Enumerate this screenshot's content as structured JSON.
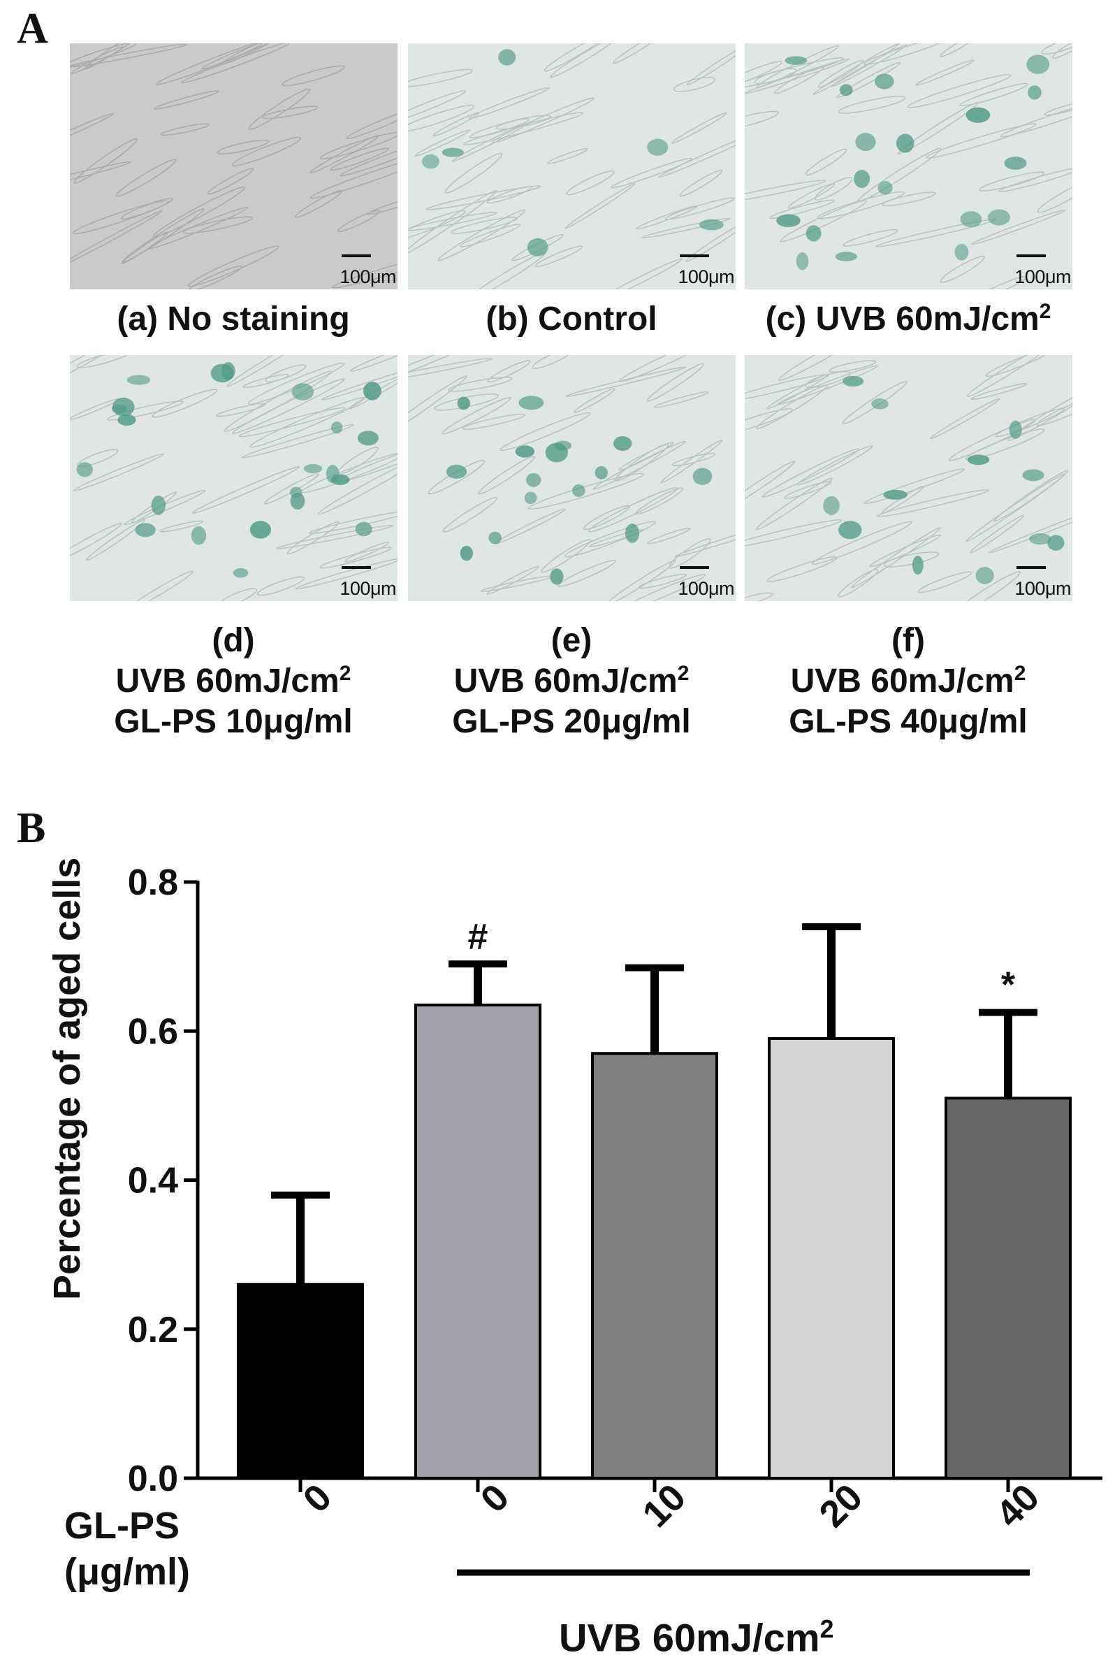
{
  "panel_a": {
    "letter": "A",
    "images": [
      {
        "caption_lines": [
          "(a) No staining"
        ],
        "scale": "100μm",
        "style": "gray",
        "dots": 0
      },
      {
        "caption_lines": [
          "(b) Control"
        ],
        "scale": "100μm",
        "style": "pale",
        "dots": 6
      },
      {
        "caption_lines": [
          "(c) UVB 60mJ/cm"
        ],
        "caption_sup": "2",
        "scale": "100μm",
        "style": "pale",
        "dots": 18
      },
      {
        "caption_lines": [
          "(d)",
          "UVB 60mJ/cm",
          "GL-PS 10μg/ml"
        ],
        "caption_sup": "2",
        "scale": "100μm",
        "style": "pale",
        "dots": 22
      },
      {
        "caption_lines": [
          "(e)",
          "UVB 60mJ/cm",
          "GL-PS 20μg/ml"
        ],
        "caption_sup": "2",
        "scale": "100μm",
        "style": "pale",
        "dots": 16
      },
      {
        "caption_lines": [
          "(f)",
          "UVB 60mJ/cm",
          "GL-PS 40μg/ml"
        ],
        "caption_sup": "2",
        "scale": "100μm",
        "style": "pale",
        "dots": 12
      }
    ]
  },
  "panel_b": {
    "letter": "B"
  },
  "chart_data": {
    "type": "bar",
    "ylabel": "Percentage of aged cells",
    "ylim": [
      0.0,
      0.8
    ],
    "yticks": [
      "0.0",
      "0.2",
      "0.4",
      "0.6",
      "0.8"
    ],
    "categories": [
      "0",
      "0",
      "10",
      "20",
      "40"
    ],
    "values": [
      0.26,
      0.635,
      0.57,
      0.59,
      0.51
    ],
    "errors": [
      0.12,
      0.055,
      0.115,
      0.15,
      0.115
    ],
    "annotations": [
      "",
      "#",
      "",
      "",
      "*"
    ],
    "bar_colors": [
      "#000000",
      "#a1a1a9",
      "#7f7f7f",
      "#d4d4d4",
      "#666666"
    ],
    "xlabel_lines": [
      "GL-PS",
      "(μg/ml)"
    ],
    "group_label": "UVB 60mJ/cm",
    "group_label_sup": "2"
  }
}
